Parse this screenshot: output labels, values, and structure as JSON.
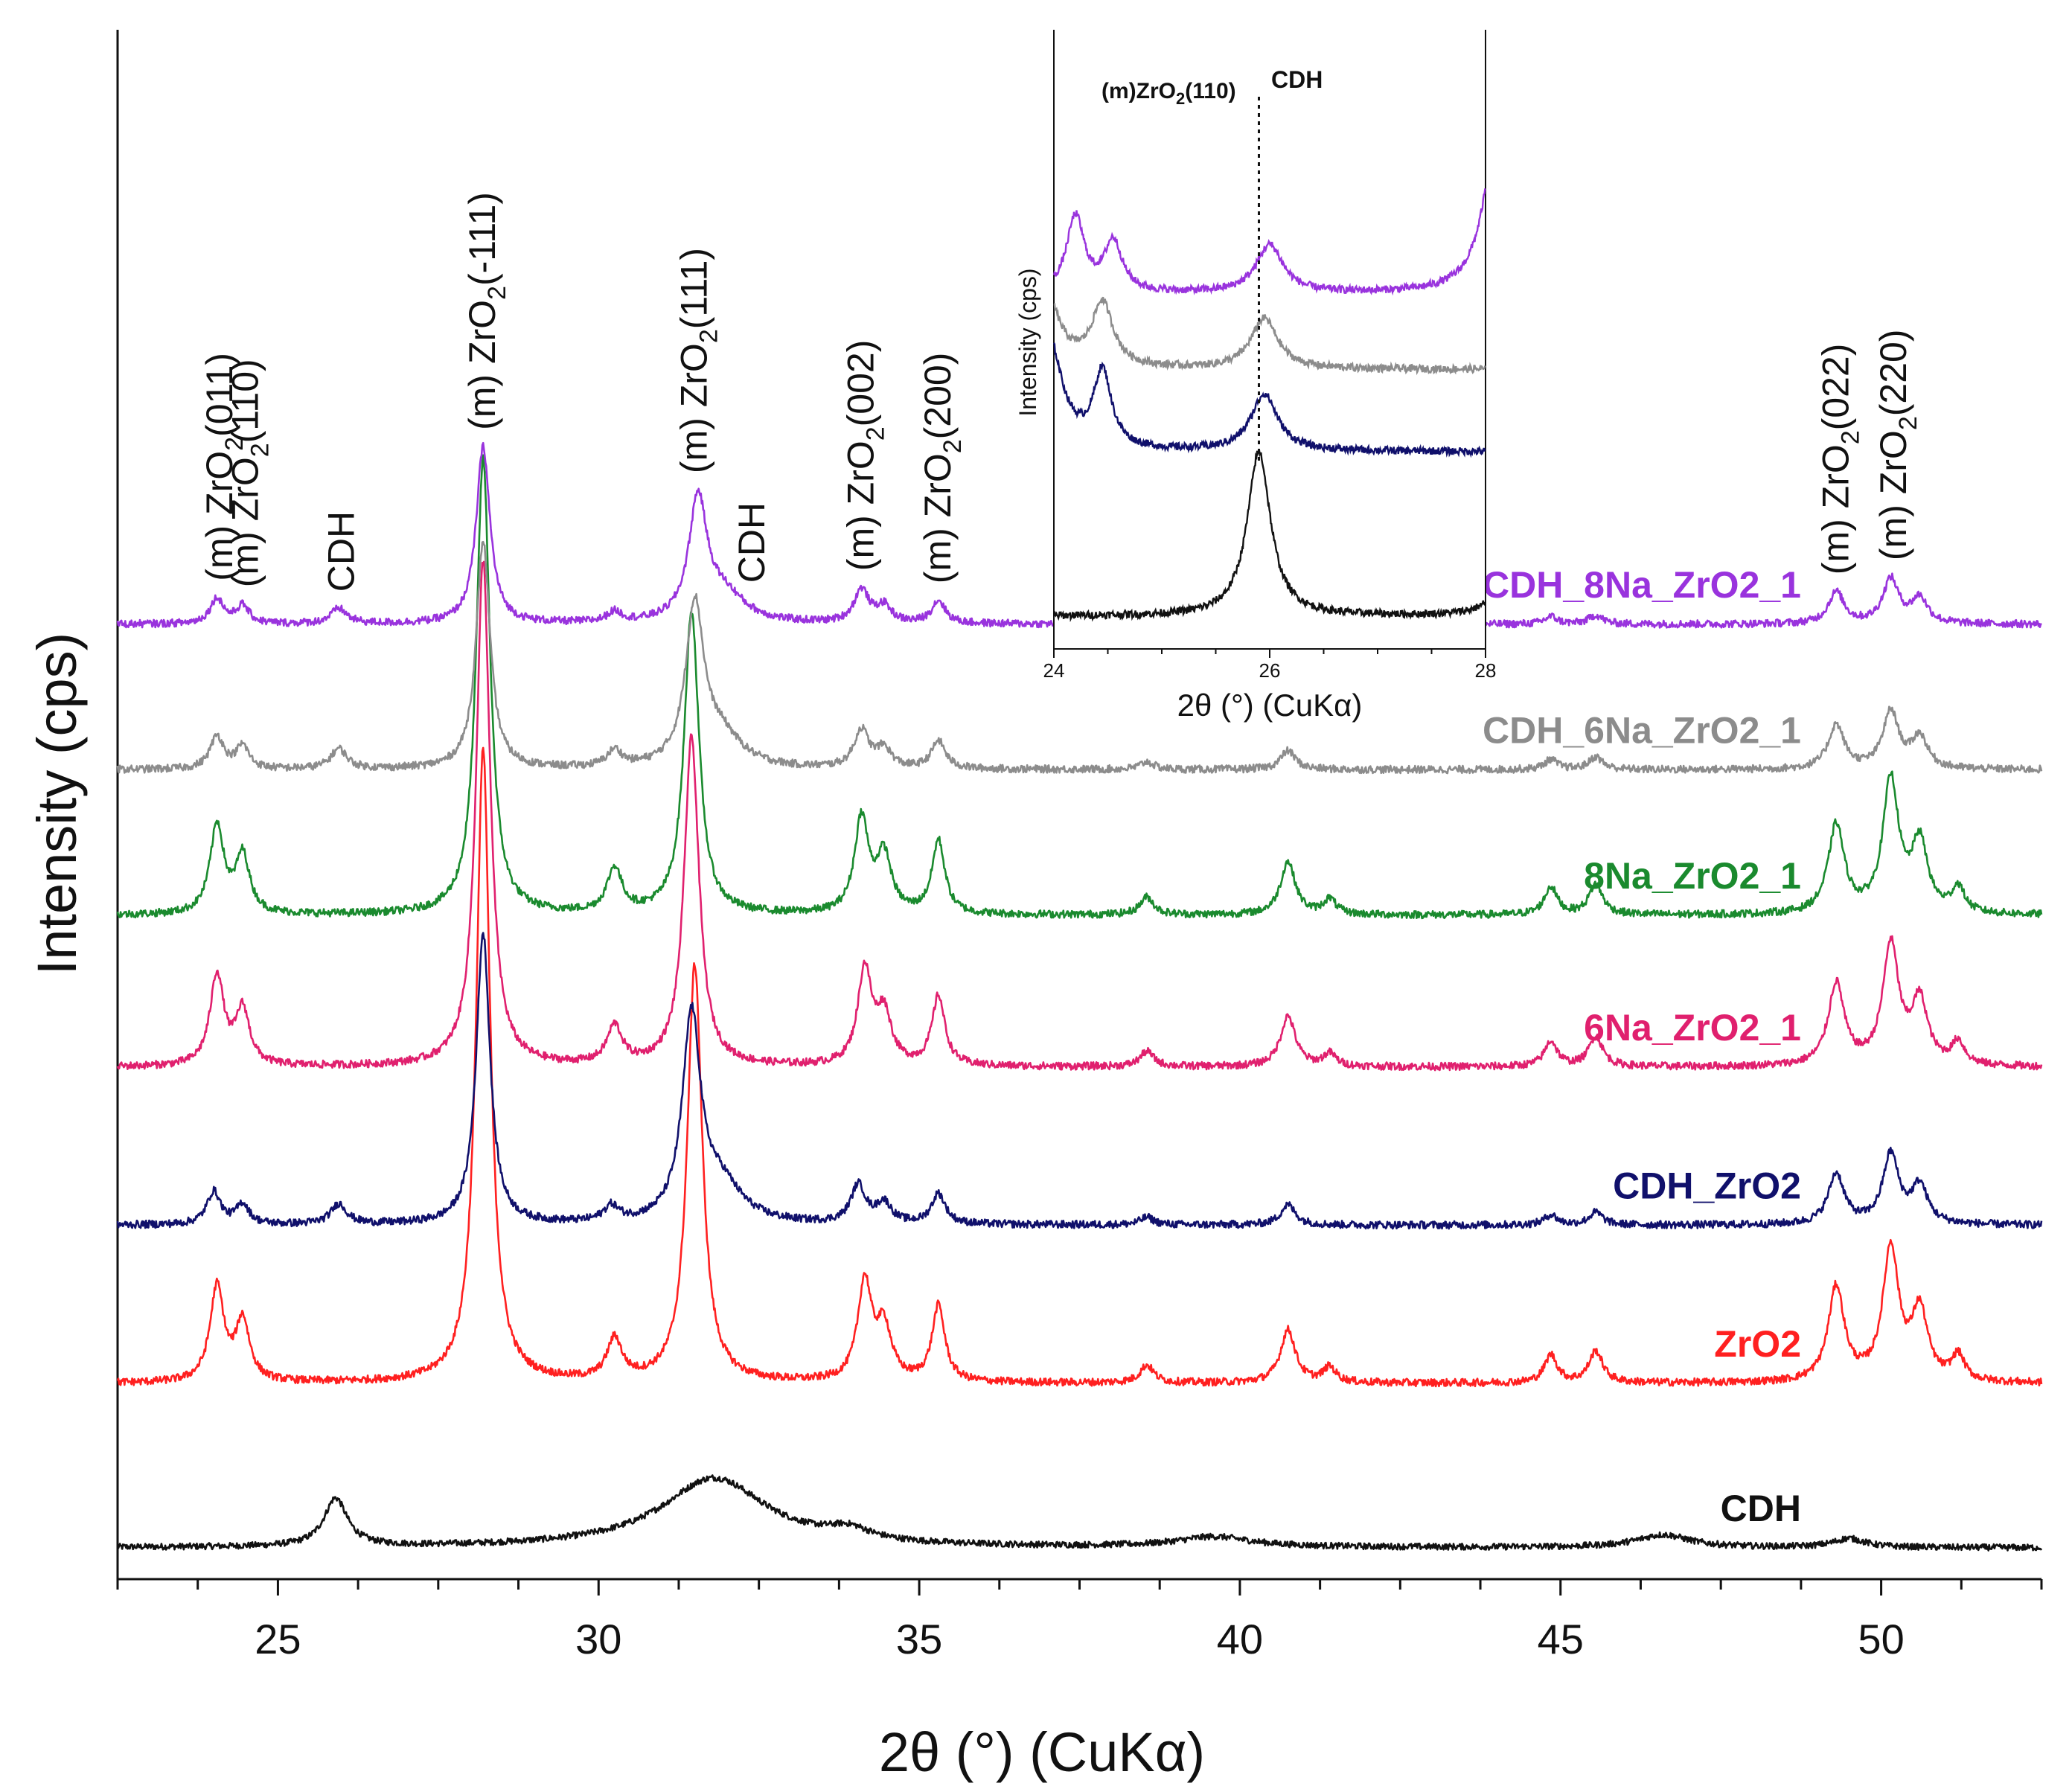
{
  "chart_data": {
    "type": "line",
    "title": "",
    "xlabel": "2θ (°) (CuKα)",
    "ylabel": "Intensity (cps)",
    "xlim": [
      22.5,
      52.5
    ],
    "x_ticks": [
      25,
      30,
      35,
      40,
      45,
      50
    ],
    "x_tick_labels": [
      "25",
      "30",
      "35",
      "40",
      "45",
      "50"
    ],
    "y_ticks_shown": false,
    "series": [
      {
        "name": "CDH",
        "color": "#111111",
        "baseline": 0,
        "noise": 0.025,
        "peaks": [
          [
            25.9,
            0.38,
            0.22
          ],
          [
            31.8,
            0.55,
            1.0
          ],
          [
            33.9,
            0.09,
            0.4
          ],
          [
            39.6,
            0.08,
            0.7
          ],
          [
            46.6,
            0.1,
            0.5
          ],
          [
            49.5,
            0.07,
            0.3
          ]
        ]
      },
      {
        "name": "ZrO2",
        "color": "#ff2020",
        "baseline": 1.3,
        "noise": 0.03,
        "peaks": [
          [
            24.05,
            0.75,
            0.13
          ],
          [
            24.45,
            0.48,
            0.13
          ],
          [
            28.2,
            5.0,
            0.13
          ],
          [
            30.25,
            0.32,
            0.14
          ],
          [
            31.5,
            3.3,
            0.14
          ],
          [
            34.15,
            0.78,
            0.13
          ],
          [
            34.45,
            0.42,
            0.14
          ],
          [
            35.3,
            0.6,
            0.12
          ],
          [
            38.55,
            0.14,
            0.13
          ],
          [
            40.75,
            0.42,
            0.14
          ],
          [
            41.4,
            0.12,
            0.12
          ],
          [
            44.85,
            0.22,
            0.12
          ],
          [
            45.55,
            0.25,
            0.13
          ],
          [
            49.3,
            0.75,
            0.15
          ],
          [
            50.15,
            1.05,
            0.15
          ],
          [
            50.6,
            0.55,
            0.15
          ],
          [
            51.2,
            0.2,
            0.12
          ]
        ]
      },
      {
        "name": "CDH_ZrO2",
        "color": "#10106b",
        "baseline": 2.55,
        "noise": 0.03,
        "peaks": [
          [
            24.0,
            0.26,
            0.13
          ],
          [
            24.45,
            0.16,
            0.12
          ],
          [
            25.95,
            0.16,
            0.15
          ],
          [
            28.2,
            2.3,
            0.13
          ],
          [
            30.2,
            0.12,
            0.14
          ],
          [
            31.45,
            1.6,
            0.17
          ],
          [
            31.9,
            0.3,
            0.4
          ],
          [
            34.05,
            0.3,
            0.14
          ],
          [
            34.45,
            0.16,
            0.14
          ],
          [
            35.3,
            0.24,
            0.13
          ],
          [
            38.55,
            0.06,
            0.13
          ],
          [
            40.75,
            0.16,
            0.14
          ],
          [
            44.85,
            0.08,
            0.12
          ],
          [
            45.55,
            0.1,
            0.13
          ],
          [
            49.3,
            0.4,
            0.15
          ],
          [
            50.15,
            0.55,
            0.15
          ],
          [
            50.6,
            0.3,
            0.15
          ]
        ]
      },
      {
        "name": "6Na_ZrO2_1",
        "color": "#e0206e",
        "baseline": 3.8,
        "noise": 0.03,
        "peaks": [
          [
            24.05,
            0.72,
            0.13
          ],
          [
            24.45,
            0.44,
            0.13
          ],
          [
            28.2,
            4.0,
            0.13
          ],
          [
            30.25,
            0.3,
            0.14
          ],
          [
            31.45,
            2.6,
            0.14
          ],
          [
            34.15,
            0.75,
            0.13
          ],
          [
            34.45,
            0.4,
            0.14
          ],
          [
            35.3,
            0.55,
            0.12
          ],
          [
            38.55,
            0.12,
            0.13
          ],
          [
            40.75,
            0.4,
            0.14
          ],
          [
            41.4,
            0.1,
            0.12
          ],
          [
            44.85,
            0.2,
            0.12
          ],
          [
            45.55,
            0.24,
            0.13
          ],
          [
            49.3,
            0.65,
            0.15
          ],
          [
            50.15,
            0.95,
            0.15
          ],
          [
            50.6,
            0.5,
            0.15
          ],
          [
            51.2,
            0.18,
            0.12
          ]
        ]
      },
      {
        "name": "8Na_ZrO2_1",
        "color": "#1a8a2e",
        "baseline": 5.0,
        "noise": 0.03,
        "peaks": [
          [
            24.05,
            0.7,
            0.13
          ],
          [
            24.45,
            0.46,
            0.13
          ],
          [
            28.2,
            3.6,
            0.13
          ],
          [
            30.25,
            0.35,
            0.14
          ],
          [
            31.45,
            2.4,
            0.14
          ],
          [
            34.1,
            0.75,
            0.13
          ],
          [
            34.45,
            0.45,
            0.14
          ],
          [
            35.3,
            0.58,
            0.12
          ],
          [
            38.55,
            0.14,
            0.13
          ],
          [
            40.75,
            0.42,
            0.14
          ],
          [
            41.4,
            0.12,
            0.12
          ],
          [
            44.85,
            0.22,
            0.12
          ],
          [
            45.55,
            0.24,
            0.13
          ],
          [
            49.3,
            0.7,
            0.15
          ],
          [
            50.15,
            1.05,
            0.15
          ],
          [
            50.6,
            0.55,
            0.15
          ],
          [
            51.2,
            0.2,
            0.12
          ]
        ]
      },
      {
        "name": "CDH_6Na_ZrO2_1",
        "color": "#8c8c8c",
        "baseline": 6.15,
        "noise": 0.03,
        "peaks": [
          [
            24.05,
            0.26,
            0.13
          ],
          [
            24.45,
            0.18,
            0.12
          ],
          [
            25.95,
            0.16,
            0.15
          ],
          [
            28.2,
            1.8,
            0.13
          ],
          [
            30.25,
            0.13,
            0.14
          ],
          [
            31.5,
            1.25,
            0.17
          ],
          [
            31.9,
            0.25,
            0.4
          ],
          [
            34.1,
            0.3,
            0.14
          ],
          [
            34.45,
            0.15,
            0.14
          ],
          [
            35.3,
            0.22,
            0.13
          ],
          [
            38.55,
            0.06,
            0.13
          ],
          [
            40.75,
            0.15,
            0.14
          ],
          [
            44.85,
            0.08,
            0.12
          ],
          [
            45.55,
            0.1,
            0.13
          ],
          [
            49.3,
            0.35,
            0.15
          ],
          [
            50.15,
            0.45,
            0.15
          ],
          [
            50.6,
            0.25,
            0.15
          ]
        ]
      },
      {
        "name": "CDH_8Na_ZrO2_1",
        "color": "#9933dd",
        "baseline": 7.3,
        "noise": 0.03,
        "peaks": [
          [
            24.05,
            0.2,
            0.13
          ],
          [
            24.45,
            0.14,
            0.12
          ],
          [
            25.95,
            0.12,
            0.15
          ],
          [
            28.2,
            1.4,
            0.13
          ],
          [
            30.25,
            0.08,
            0.14
          ],
          [
            31.55,
            0.95,
            0.17
          ],
          [
            31.95,
            0.22,
            0.4
          ],
          [
            34.1,
            0.26,
            0.14
          ],
          [
            34.45,
            0.13,
            0.14
          ],
          [
            35.3,
            0.18,
            0.13
          ],
          [
            38.55,
            0.05,
            0.13
          ],
          [
            40.75,
            0.12,
            0.14
          ],
          [
            44.85,
            0.06,
            0.12
          ],
          [
            45.55,
            0.07,
            0.13
          ],
          [
            49.3,
            0.25,
            0.15
          ],
          [
            50.15,
            0.35,
            0.15
          ],
          [
            50.6,
            0.2,
            0.15
          ]
        ]
      }
    ],
    "series_labels": [
      {
        "text": "CDH_8Na_ZrO2_1",
        "color": "#9933dd"
      },
      {
        "text": "CDH_6Na_ZrO2_1",
        "color": "#8c8c8c"
      },
      {
        "text": "8Na_ZrO2_1",
        "color": "#1a8a2e"
      },
      {
        "text": "6Na_ZrO2_1",
        "color": "#e0206e"
      },
      {
        "text": "CDH_ZrO2",
        "color": "#10106b"
      },
      {
        "text": "ZrO2",
        "color": "#ff2020"
      },
      {
        "text": "CDH",
        "color": "#111111"
      }
    ],
    "peak_annotations": [
      {
        "pos": 24.1,
        "prefix": "(m) ZrO",
        "sub": "2",
        "suffix": "(011)"
      },
      {
        "pos": 24.5,
        "prefix": "(m) ZrO",
        "sub": "2",
        "suffix": "(110)"
      },
      {
        "pos": 26.0,
        "prefix": "CDH",
        "sub": "",
        "suffix": ""
      },
      {
        "pos": 28.2,
        "prefix": "(m) ZrO",
        "sub": "2",
        "suffix": "(-111)"
      },
      {
        "pos": 31.5,
        "prefix": "(m) ZrO",
        "sub": "2",
        "suffix": "(111)"
      },
      {
        "pos": 32.4,
        "prefix": "CDH",
        "sub": "",
        "suffix": ""
      },
      {
        "pos": 34.1,
        "prefix": "(m) ZrO",
        "sub": "2",
        "suffix": "(002)"
      },
      {
        "pos": 35.3,
        "prefix": "(m) ZrO",
        "sub": "2",
        "suffix": "(200)"
      },
      {
        "pos": 49.3,
        "prefix": "(m) ZrO",
        "sub": "2",
        "suffix": "(022)"
      },
      {
        "pos": 50.2,
        "prefix": "(m) ZrO",
        "sub": "2",
        "suffix": "(220)"
      }
    ],
    "inset": {
      "xlim": [
        24,
        28
      ],
      "x_ticks": [
        24,
        26,
        28
      ],
      "x_tick_labels": [
        "24",
        "26",
        "28"
      ],
      "xlabel": "2θ (°) (CuKα)",
      "ylabel": "Intensity (cps)",
      "dotted_line_x": 25.9,
      "annotation_zro2_prefix": "(m)ZrO",
      "annotation_zro2_sub": "2",
      "annotation_zro2_suffix": "(110)",
      "annotation_cdh": "CDH",
      "series": [
        {
          "name": "CDH_8Na_ZrO2_1",
          "color": "#9933dd",
          "baseline": 2.55,
          "peaks": [
            [
              24.2,
              0.6,
              0.1
            ],
            [
              24.55,
              0.4,
              0.1
            ],
            [
              26.0,
              0.38,
              0.15
            ],
            [
              28.1,
              1.2,
              0.15
            ]
          ]
        },
        {
          "name": "CDH_6Na_ZrO2_1",
          "color": "#8c8c8c",
          "baseline": 1.95,
          "peaks": [
            [
              23.9,
              0.7,
              0.15
            ],
            [
              24.45,
              0.5,
              0.12
            ],
            [
              25.95,
              0.4,
              0.15
            ]
          ]
        },
        {
          "name": "CDH_ZrO2",
          "color": "#10106b",
          "baseline": 1.3,
          "peaks": [
            [
              23.95,
              0.9,
              0.15
            ],
            [
              24.45,
              0.6,
              0.1
            ],
            [
              25.95,
              0.45,
              0.15
            ]
          ]
        },
        {
          "name": "CDH",
          "color": "#111111",
          "baseline": 0,
          "peaks": [
            [
              25.9,
              1.3,
              0.13
            ],
            [
              28.2,
              0.3,
              0.15
            ]
          ]
        }
      ]
    }
  }
}
